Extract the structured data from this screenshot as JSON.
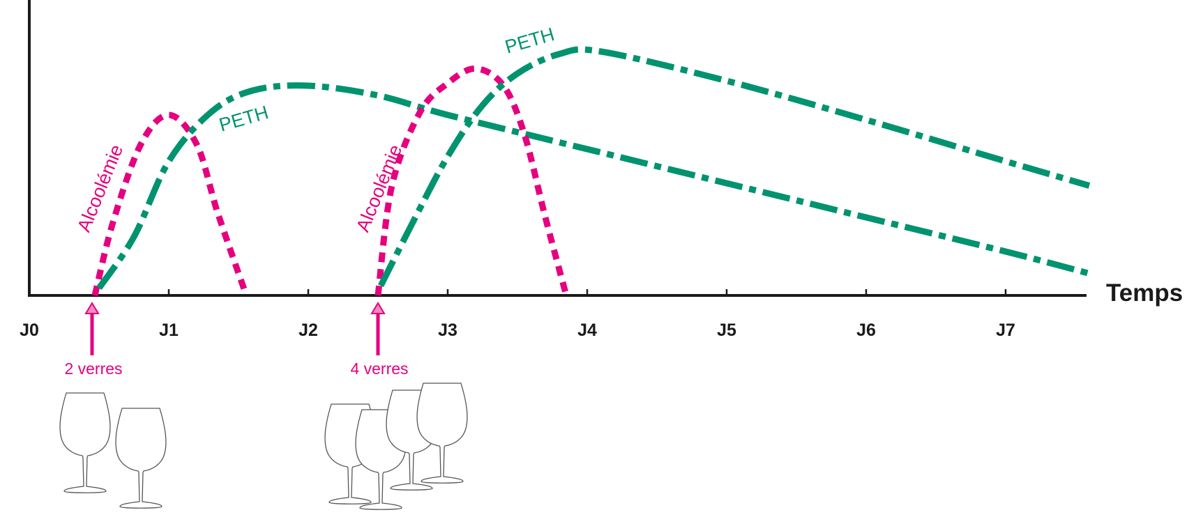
{
  "chart_data": {
    "type": "line",
    "title": "",
    "xlabel": "Temps",
    "ylabel": "",
    "x_ticks": [
      "J0",
      "J1",
      "J2",
      "J3",
      "J4",
      "J5",
      "J6",
      "J7"
    ],
    "xlim": [
      0,
      7.6
    ],
    "ylim": [
      0,
      1
    ],
    "grid": false,
    "legend": "none",
    "colors": {
      "peth": "#00936f",
      "alcool": "#e5007e",
      "axis": "#1a1a1a",
      "glass": "#555555"
    },
    "series": [
      {
        "name": "Alcoolémie",
        "curve": "alcool",
        "label_at": [
          0.55,
          0.43
        ],
        "x": [
          0.47,
          0.6,
          0.8,
          1.0,
          1.2,
          1.35,
          1.55
        ],
        "y": [
          0.0,
          0.3,
          0.62,
          0.74,
          0.62,
          0.34,
          0.01
        ]
      },
      {
        "name": "PETH",
        "curve": "peth",
        "label_at": [
          1.55,
          0.7
        ],
        "x": [
          0.5,
          0.75,
          1.0,
          1.3,
          1.6,
          2.0,
          2.5,
          3.0,
          4.0,
          5.0,
          6.0,
          7.0,
          7.6
        ],
        "y": [
          0.03,
          0.24,
          0.55,
          0.75,
          0.84,
          0.86,
          0.82,
          0.74,
          0.6,
          0.46,
          0.32,
          0.18,
          0.09
        ]
      },
      {
        "name": "Alcoolémie",
        "curve": "alcool",
        "label_at": [
          2.55,
          0.43
        ],
        "x": [
          2.5,
          2.6,
          2.8,
          3.0,
          3.2,
          3.4,
          3.55,
          3.7,
          3.85
        ],
        "y": [
          0.0,
          0.45,
          0.75,
          0.87,
          0.93,
          0.86,
          0.66,
          0.32,
          0.0
        ]
      },
      {
        "name": "PETH",
        "curve": "peth",
        "label_at": [
          3.6,
          1.02
        ],
        "x": [
          2.52,
          2.75,
          3.0,
          3.25,
          3.5,
          3.8,
          4.1,
          5.0,
          6.0,
          7.0,
          7.6
        ],
        "y": [
          0.04,
          0.3,
          0.57,
          0.78,
          0.91,
          0.99,
          1.0,
          0.88,
          0.72,
          0.55,
          0.45
        ]
      }
    ],
    "annotations": [
      {
        "text": "2 verres",
        "x": 0.45,
        "glasses": 2
      },
      {
        "text": "4 verres",
        "x": 2.5,
        "glasses": 4
      }
    ]
  }
}
